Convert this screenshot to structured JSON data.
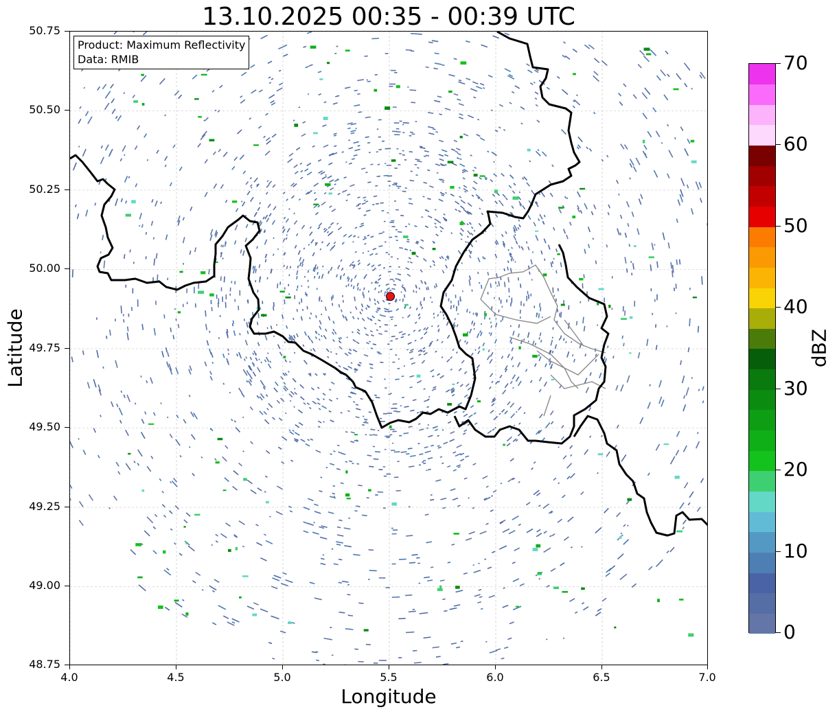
{
  "title": "13.10.2025 00:35 - 00:39 UTC",
  "info": {
    "product": "Product: Maximum Reflectivity",
    "source": "Data: RMIB"
  },
  "axes": {
    "xlabel": "Longitude",
    "ylabel": "Latitude",
    "xlim": [
      4.0,
      7.0
    ],
    "ylim": [
      48.75,
      50.75
    ],
    "xticks": [
      "4.0",
      "4.5",
      "5.0",
      "5.5",
      "6.0",
      "6.5",
      "7.0"
    ],
    "yticks": [
      "50.75",
      "50.50",
      "50.25",
      "50.00",
      "49.75",
      "49.50",
      "49.25",
      "49.00",
      "48.75"
    ],
    "grid": true
  },
  "radar_site": {
    "lon": 5.505,
    "lat": 49.915,
    "color": "#e8141b"
  },
  "colorbar": {
    "label": "dBZ",
    "min": 0,
    "max": 70,
    "ticks": [
      "0",
      "10",
      "20",
      "30",
      "40",
      "50",
      "60",
      "70"
    ],
    "colors": [
      "#6476a7",
      "#566ea6",
      "#4a63a6",
      "#4d7eb4",
      "#5399c4",
      "#61bbd6",
      "#63d8c6",
      "#3ecf70",
      "#13c21c",
      "#0faf18",
      "#0e9e14",
      "#0b8c11",
      "#0a7a0e",
      "#075e0a",
      "#4b7c0a",
      "#a9ad08",
      "#fad305",
      "#fbb404",
      "#fb9902",
      "#fb7c01",
      "#e60000",
      "#c20000",
      "#a10000",
      "#7a0000",
      "#fdd9fd",
      "#fcb3fc",
      "#fb6bfb",
      "#ee33ee"
    ]
  }
}
